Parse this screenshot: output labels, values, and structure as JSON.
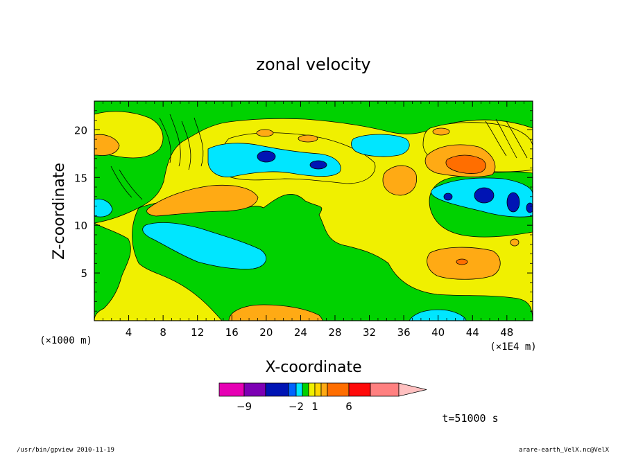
{
  "chart_data": {
    "type": "heatmap",
    "title": "zonal velocity",
    "xlabel": "X-coordinate",
    "ylabel": "Z-coordinate",
    "x_unit": "(×1E4 m)",
    "y_unit": "(×1000 m)",
    "xlim": [
      0,
      51
    ],
    "ylim": [
      0,
      23
    ],
    "x_ticks": [
      4,
      8,
      12,
      16,
      20,
      24,
      28,
      32,
      36,
      40,
      44,
      48
    ],
    "y_ticks": [
      5,
      10,
      15,
      20
    ],
    "colorbar": {
      "levels": [
        -12,
        -9,
        -6,
        -3,
        -2,
        -1,
        0,
        1,
        2,
        3,
        6,
        9,
        12
      ],
      "colors": [
        "#e600b4",
        "#7d00b4",
        "#0014b4",
        "#0064ff",
        "#00e6ff",
        "#00d200",
        "#f0f000",
        "#ffd700",
        "#ffaa14",
        "#ff6e00",
        "#ff0a0a",
        "#ff8080",
        "#ffc0c0"
      ],
      "labels": [
        {
          "value": -9,
          "text": "−9"
        },
        {
          "value": -2,
          "text": "−2"
        },
        {
          "value": 1,
          "text": "1"
        },
        {
          "value": 6,
          "text": "6"
        }
      ]
    },
    "regions": [
      {
        "level": "yellow",
        "color": "#f0f000",
        "note": "background positive weak"
      }
    ]
  },
  "time_label": "t=51000 s",
  "footer": {
    "left": "/usr/bin/gpview  2010-11-19",
    "right": "arare-earth_VelX.nc@VelX"
  }
}
